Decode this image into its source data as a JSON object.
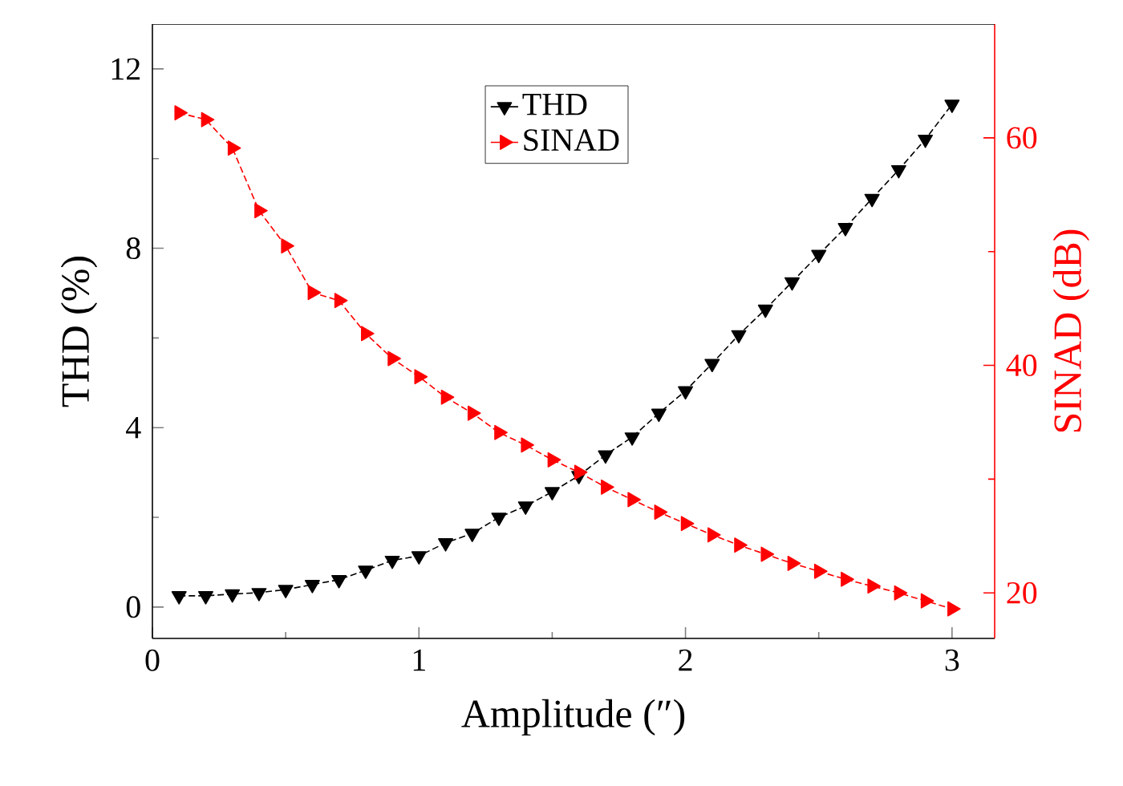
{
  "chart_data": {
    "type": "line",
    "xlabel": "Amplitude (″)",
    "ylabel": "THD (%)",
    "y2label": "SINAD (dB)",
    "x": [
      0.1,
      0.2,
      0.3,
      0.4,
      0.5,
      0.6,
      0.7,
      0.8,
      0.9,
      1.0,
      1.1,
      1.2,
      1.3,
      1.4,
      1.5,
      1.6,
      1.7,
      1.8,
      1.9,
      2.0,
      2.1,
      2.2,
      2.3,
      2.4,
      2.5,
      2.6,
      2.7,
      2.8,
      2.9,
      3.0
    ],
    "series": [
      {
        "name": "THD",
        "color": "#000000",
        "marker": "triangle",
        "values": [
          0.25,
          0.25,
          0.29,
          0.32,
          0.39,
          0.5,
          0.61,
          0.82,
          1.04,
          1.14,
          1.43,
          1.64,
          2.0,
          2.25,
          2.57,
          2.93,
          3.39,
          3.79,
          4.32,
          4.82,
          5.43,
          6.07,
          6.64,
          7.25,
          7.86,
          8.46,
          9.11,
          9.75,
          10.43,
          11.21
        ]
      },
      {
        "name": "SINAD",
        "color": "#ff0000",
        "marker": "triangle",
        "axis": "y2",
        "values": [
          62.2,
          61.6,
          59.1,
          53.6,
          50.5,
          46.4,
          45.7,
          42.8,
          40.6,
          39.0,
          37.2,
          35.8,
          34.1,
          33.0,
          31.7,
          30.6,
          29.3,
          28.2,
          27.1,
          26.1,
          25.1,
          24.2,
          23.4,
          22.6,
          21.9,
          21.2,
          20.6,
          20.0,
          19.3,
          18.6
        ]
      }
    ],
    "xlim": [
      0,
      3.16
    ],
    "xticks": [
      0,
      1,
      2,
      3
    ],
    "ylim": [
      -0.7,
      13
    ],
    "yticks": [
      0,
      4,
      8,
      12
    ],
    "y2lim": [
      16,
      70
    ],
    "y2ticks": [
      20,
      40,
      60
    ],
    "line_style": "dashed",
    "legend": "top",
    "grid": false
  }
}
